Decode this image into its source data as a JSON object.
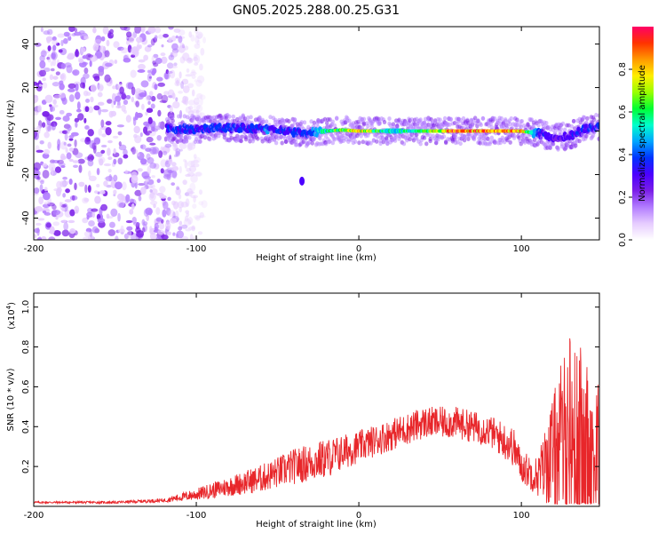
{
  "title": "GN05.2025.288.00.25.G31",
  "colors": {
    "snr_line": "#e8262a",
    "cbar": [
      "#ffffff",
      "#e6ccff",
      "#b27cff",
      "#7a1ee8",
      "#4b00ff",
      "#0033ff",
      "#00a6ff",
      "#00ffcc",
      "#00ff33",
      "#99ff00",
      "#ffee00",
      "#ff9900",
      "#ff3300",
      "#ff0066"
    ]
  },
  "chart_data": [
    {
      "type": "heatmap",
      "name": "spectrogram",
      "title": "GN05.2025.288.00.25.G31",
      "xlabel": "Height of straight line (km)",
      "ylabel": "Frequency (Hz)",
      "xlim": [
        -200,
        148
      ],
      "ylim": [
        -50,
        48
      ],
      "xticks": [
        -200,
        -100,
        0,
        100
      ],
      "xtick_labels": [
        "-200",
        "-100",
        "0",
        "100"
      ],
      "yticks": [
        -40,
        -20,
        0,
        20,
        40
      ],
      "ytick_labels": [
        "-40",
        "-20",
        "0",
        "20",
        "40"
      ],
      "noise_region_x": [
        -200,
        -120
      ],
      "ridge_x": [
        -118,
        -100,
        -80,
        -60,
        -45,
        -35,
        -20,
        -10,
        0,
        20,
        40,
        60,
        80,
        100,
        110,
        120,
        130,
        140,
        148
      ],
      "ridge_y": [
        1,
        1,
        1.5,
        1,
        0,
        -1,
        0,
        0.5,
        0,
        0,
        0,
        0,
        0,
        0,
        -1,
        -3,
        -2,
        1,
        2
      ],
      "ridge_amp": [
        0.4,
        0.38,
        0.4,
        0.42,
        0.38,
        0.4,
        0.6,
        0.75,
        0.85,
        0.55,
        0.7,
        0.95,
        0.95,
        0.9,
        0.4,
        0.3,
        0.35,
        0.4,
        0.4
      ],
      "colorbar": {
        "label": "Normalized spectral amplitude",
        "ticks": [
          0.0,
          0.2,
          0.4,
          0.6,
          0.8
        ],
        "tick_labels": [
          "0.0",
          "0.2",
          "0.4",
          "0.6",
          "0.8"
        ],
        "range": [
          0,
          1
        ]
      }
    },
    {
      "type": "line",
      "name": "snr",
      "xlabel": "Height of straight line (km)",
      "ylabel": "SNR (10 * v/v)",
      "scale_label": "(x10",
      "scale_exp": "4",
      "scale_close": ")",
      "xlim": [
        -200,
        148
      ],
      "ylim": [
        0,
        1.07
      ],
      "xticks": [
        -200,
        -100,
        0,
        100
      ],
      "xtick_labels": [
        "-200",
        "-100",
        "0",
        "100"
      ],
      "yticks": [
        0.2,
        0.4,
        0.6,
        0.8,
        1.0
      ],
      "ytick_labels": [
        "0.2",
        "0.4",
        "0.6",
        "0.8",
        "1.0"
      ],
      "envelope_x": [
        -200,
        -150,
        -120,
        -100,
        -80,
        -60,
        -40,
        -20,
        0,
        20,
        40,
        60,
        80,
        95,
        100,
        110,
        120,
        130,
        140,
        148
      ],
      "envelope_mean": [
        0.02,
        0.02,
        0.03,
        0.06,
        0.1,
        0.14,
        0.2,
        0.24,
        0.3,
        0.36,
        0.42,
        0.42,
        0.38,
        0.3,
        0.2,
        0.15,
        0.28,
        0.35,
        0.32,
        0.25
      ],
      "envelope_amp": [
        0.005,
        0.006,
        0.01,
        0.03,
        0.05,
        0.07,
        0.09,
        0.1,
        0.08,
        0.08,
        0.08,
        0.08,
        0.08,
        0.1,
        0.08,
        0.1,
        0.3,
        0.55,
        0.45,
        0.35
      ]
    }
  ]
}
